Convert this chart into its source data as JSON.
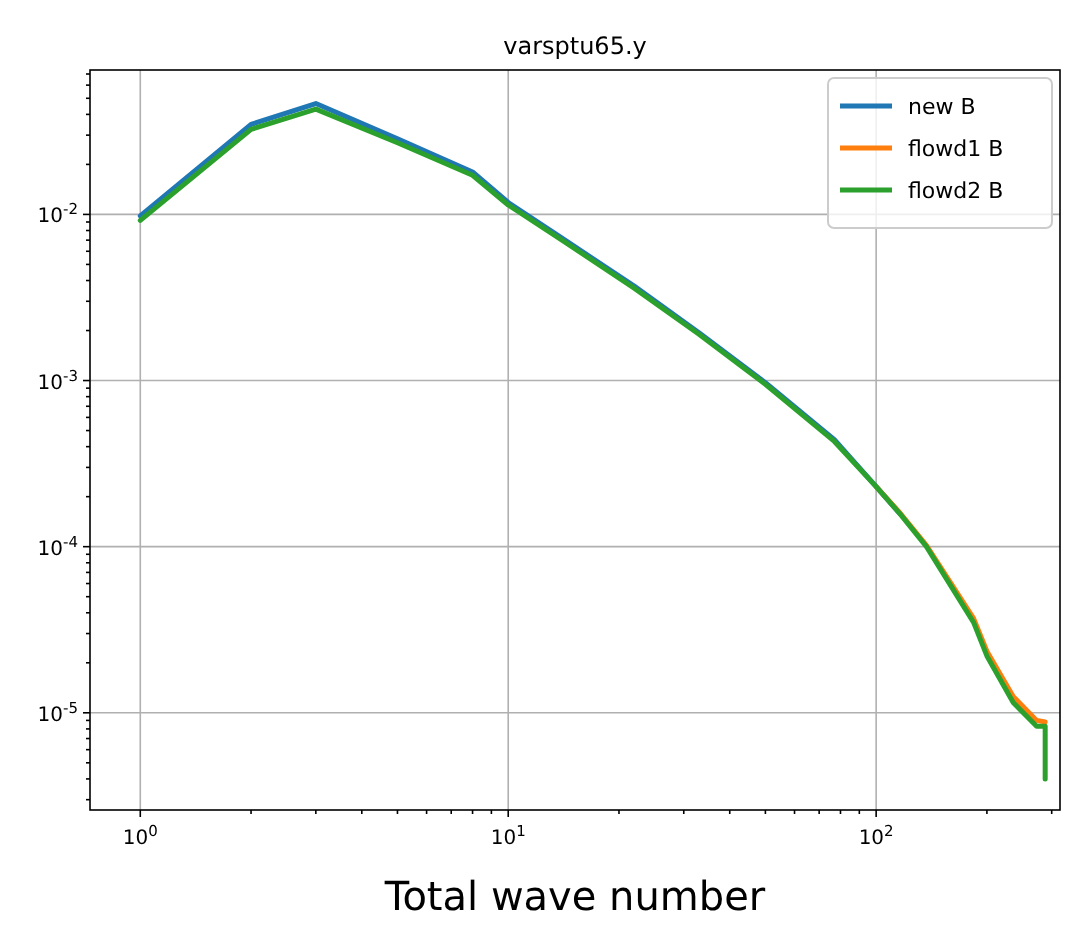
{
  "chart_data": {
    "type": "line",
    "title": "varsptu65.y",
    "xlabel": "Total wave number",
    "log": "xy",
    "grid": true,
    "legend": "top right",
    "line_style": "solid",
    "xlim": [
      0.73,
      316
    ],
    "ylim": [
      2.6e-06,
      0.074
    ],
    "xticks": [
      {
        "value": 1,
        "label": "10$^{0}$"
      },
      {
        "value": 2,
        "label": null
      },
      {
        "value": 3,
        "label": null
      },
      {
        "value": 4,
        "label": null
      },
      {
        "value": 5,
        "label": null
      },
      {
        "value": 6,
        "label": null
      },
      {
        "value": 7,
        "label": null
      },
      {
        "value": 8,
        "label": null
      },
      {
        "value": 9,
        "label": null
      },
      {
        "value": 10,
        "label": "10$^{1}$"
      },
      {
        "value": 20,
        "label": null
      },
      {
        "value": 30,
        "label": null
      },
      {
        "value": 40,
        "label": null
      },
      {
        "value": 50,
        "label": null
      },
      {
        "value": 60,
        "label": null
      },
      {
        "value": 70,
        "label": null
      },
      {
        "value": 80,
        "label": null
      },
      {
        "value": 90,
        "label": null
      },
      {
        "value": 100,
        "label": "10$^{2}$"
      },
      {
        "value": 200,
        "label": null
      },
      {
        "value": 300,
        "label": null
      }
    ],
    "yticks": [
      {
        "value": 3e-06,
        "label": null
      },
      {
        "value": 4e-06,
        "label": null
      },
      {
        "value": 5e-06,
        "label": null
      },
      {
        "value": 6e-06,
        "label": null
      },
      {
        "value": 7e-06,
        "label": null
      },
      {
        "value": 8e-06,
        "label": null
      },
      {
        "value": 9e-06,
        "label": null
      },
      {
        "value": 1e-05,
        "label": "10$^{-5}$"
      },
      {
        "value": 2e-05,
        "label": null
      },
      {
        "value": 3e-05,
        "label": null
      },
      {
        "value": 4e-05,
        "label": null
      },
      {
        "value": 5e-05,
        "label": null
      },
      {
        "value": 6e-05,
        "label": null
      },
      {
        "value": 7e-05,
        "label": null
      },
      {
        "value": 8e-05,
        "label": null
      },
      {
        "value": 9e-05,
        "label": null
      },
      {
        "value": 0.0001,
        "label": "10$^{-4}$"
      },
      {
        "value": 0.0002,
        "label": null
      },
      {
        "value": 0.0003,
        "label": null
      },
      {
        "value": 0.0004,
        "label": null
      },
      {
        "value": 0.0005,
        "label": null
      },
      {
        "value": 0.0006,
        "label": null
      },
      {
        "value": 0.0007,
        "label": null
      },
      {
        "value": 0.0008,
        "label": null
      },
      {
        "value": 0.0009,
        "label": null
      },
      {
        "value": 0.001,
        "label": "10$^{-3}$"
      },
      {
        "value": 0.002,
        "label": null
      },
      {
        "value": 0.003,
        "label": null
      },
      {
        "value": 0.004,
        "label": null
      },
      {
        "value": 0.005,
        "label": null
      },
      {
        "value": 0.006,
        "label": null
      },
      {
        "value": 0.007,
        "label": null
      },
      {
        "value": 0.008,
        "label": null
      },
      {
        "value": 0.009,
        "label": null
      },
      {
        "value": 0.01,
        "label": "10$^{-2}$"
      },
      {
        "value": 0.02,
        "label": null
      },
      {
        "value": 0.03,
        "label": null
      },
      {
        "value": 0.04,
        "label": null
      },
      {
        "value": 0.05,
        "label": null
      },
      {
        "value": 0.06,
        "label": null
      },
      {
        "value": 0.07,
        "label": null
      }
    ],
    "x": [
      1,
      2,
      3,
      5,
      8,
      10,
      14,
      22,
      33,
      50,
      77,
      100,
      116,
      137,
      184,
      200,
      236,
      273,
      288,
      288
    ],
    "series": [
      {
        "name": "new B",
        "color": "#1f77b4",
        "values": [
          0.0098,
          0.0348,
          0.0465,
          0.0285,
          0.018,
          0.0118,
          0.0072,
          0.0037,
          0.00194,
          0.00097,
          0.00044,
          0.00023,
          0.000158,
          null,
          null,
          null,
          null,
          null,
          null,
          null
        ]
      },
      {
        "name": "flowd1 B",
        "color": "#ff7f0e",
        "values": [
          null,
          null,
          null,
          null,
          null,
          null,
          null,
          null,
          null,
          null,
          null,
          0.00023,
          0.00016,
          0.000102,
          3.7e-05,
          2.35e-05,
          1.25e-05,
          9e-06,
          8.8e-06,
          8.8e-06
        ]
      },
      {
        "name": "flowd2 B",
        "color": "#2ca02c",
        "values": [
          0.0092,
          0.0325,
          0.043,
          0.027,
          0.0172,
          0.0114,
          0.007,
          0.0036,
          0.0019,
          0.00095,
          0.00043,
          0.00023,
          0.000158,
          0.0001,
          3.5e-05,
          2.2e-05,
          1.15e-05,
          8.3e-06,
          8.3e-06,
          4e-06
        ]
      }
    ]
  }
}
